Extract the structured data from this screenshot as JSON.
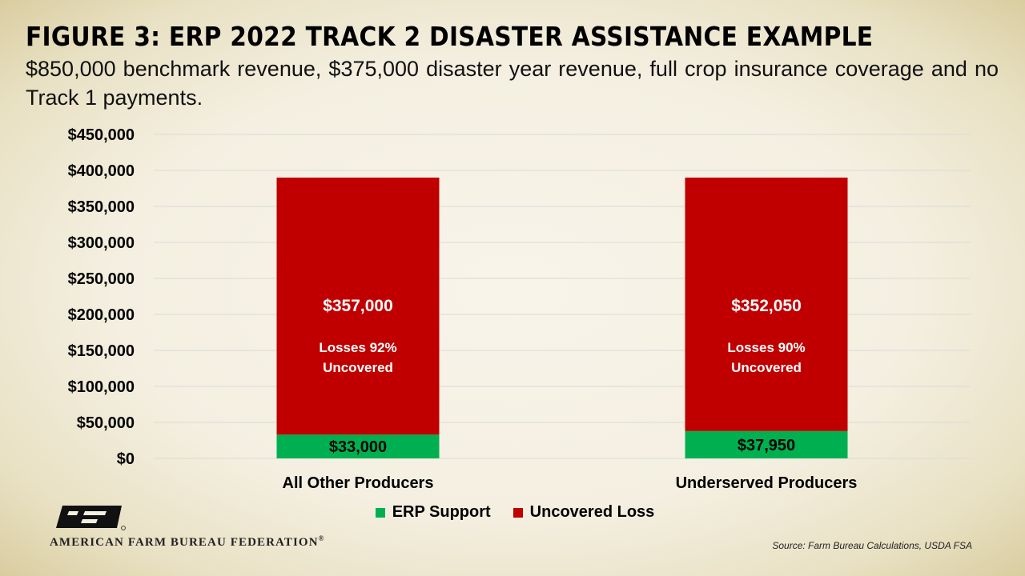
{
  "title": "FIGURE 3: ERP 2022 TRACK 2 DISASTER ASSISTANCE EXAMPLE",
  "subtitle": "$850,000 benchmark revenue, $375,000 disaster year revenue, full crop insurance coverage and no Track 1 payments.",
  "organization": "AMERICAN FARM BUREAU FEDERATION",
  "registered_mark": "®",
  "logo_text": "FB",
  "source": "Source: Farm Bureau Calculations, USDA FSA",
  "colors": {
    "erp_support": "#00b050",
    "uncovered_loss": "#c00000",
    "grid": "#d9d9d9"
  },
  "chart_data": {
    "type": "bar",
    "stacked": true,
    "categories": [
      "All Other Producers",
      "Underserved Producers"
    ],
    "series": [
      {
        "name": "ERP Support",
        "color": "#00b050",
        "values": [
          33000,
          37950
        ],
        "labels": [
          "$33,000",
          "$37,950"
        ]
      },
      {
        "name": "Uncovered Loss",
        "color": "#c00000",
        "values": [
          357000,
          352050
        ],
        "labels": [
          "$357,000",
          "$352,050"
        ],
        "notes": [
          "Losses 92%",
          "Losses 90%"
        ],
        "notes2": [
          "Uncovered",
          "Uncovered"
        ]
      }
    ],
    "ylim": [
      0,
      450000
    ],
    "yticks": [
      0,
      50000,
      100000,
      150000,
      200000,
      250000,
      300000,
      350000,
      400000,
      450000
    ],
    "ytick_labels": [
      "$0",
      "$50,000",
      "$100,000",
      "$150,000",
      "$200,000",
      "$250,000",
      "$300,000",
      "$350,000",
      "$400,000",
      "$450,000"
    ],
    "grid": true,
    "legend_position": "bottom"
  }
}
